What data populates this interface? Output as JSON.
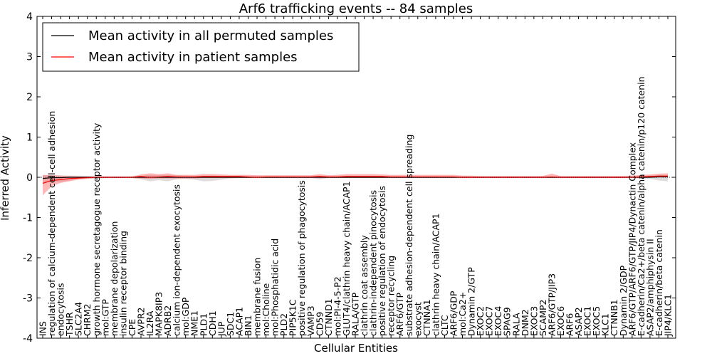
{
  "chart_data": {
    "type": "line",
    "title": "Arf6 trafficking events -- 84 samples",
    "xlabel": "Cellular Entities",
    "ylabel": "Inferred Activity",
    "ylim": [
      -4,
      4
    ],
    "yticks": [
      -4,
      -3,
      -2,
      -1,
      0,
      1,
      2,
      3,
      4
    ],
    "grid": false,
    "legend": {
      "placement": "top-left",
      "entries": [
        {
          "label": "Mean activity in all permuted samples",
          "color": "#000000"
        },
        {
          "label": "Mean activity in patient samples",
          "color": "#ff0000"
        }
      ]
    },
    "categories": [
      "INS",
      "regulation of calcium-dependent cell-cell adhesion",
      "endocytosis",
      "TSHR",
      "SLC2A4",
      "CHRM2",
      "growth hormone secretagogue receptor activity",
      "mol:GTP",
      "membrane depolarization",
      "insulin receptor binding",
      "CPE",
      "AVPR2",
      "IL2RA",
      "MAPK8IP3",
      "ADRB2",
      "calcium ion-dependent exocytosis",
      "mol:GDP",
      "NME1",
      "PLD1",
      "CDH1",
      "JUP",
      "SDC1",
      "ACAP1",
      "BIN1",
      "membrane fusion",
      "mol:Choline",
      "mol:Phosphatidic acid",
      "PLD2",
      "PIP5K1C",
      "positive regulation of phagocytosis",
      "VAMP3",
      "CD59",
      "CTNND1",
      "mol:PI-4-5-P2",
      "GLUT4/clathrin heavy chain/ACAP1",
      "RALA/GTP",
      "clathrin coat assembly",
      "clathrin-independent pinocytosis",
      "positive regulation of endocytosis",
      "receptor recycling",
      "ARF6/GTP",
      "substrate adhesion-dependent cell spreading",
      "exocyst",
      "CTNNA1",
      "clathrin heavy chain/ACAP1",
      "CLTC",
      "ARF6/GDP",
      "mol:Ca2+",
      "Dynamin 2/GTP",
      "EXOC2",
      "EXOC7",
      "EXOC4",
      "SPAG9",
      "RALA",
      "DNM2",
      "EXOC3",
      "SCAMP2",
      "ARF6/GTP/JIP3",
      "EXOC6",
      "ARF6",
      "ASAP2",
      "EXOC1",
      "EXOC5",
      "KLC1",
      "CTNNB1",
      "Dynamin 2/GDP",
      "ARF6/GTP/ARF6/GTP/JIP4/Dynactin Complex",
      "E-cadherin/Ca2+/beta catenin/alpha catenin/p120 catenin",
      "ASAP2/amphiphysin II",
      "E-cadherin/beta catenin",
      "JIP4/KLC1"
    ],
    "series": [
      {
        "name": "Mean activity in all permuted samples",
        "color": "#000000",
        "values": [
          -0.03,
          -0.01,
          -0.01,
          0,
          0,
          0,
          0,
          0,
          0,
          0,
          0,
          0,
          0,
          0,
          0,
          0,
          0,
          0,
          0,
          0,
          0,
          0,
          0,
          0,
          0,
          0,
          0,
          0,
          0,
          0,
          0,
          0,
          0,
          0,
          0,
          0,
          0,
          0,
          0,
          0,
          0,
          0,
          0,
          0,
          0,
          0,
          0,
          0,
          0,
          0,
          0,
          0,
          0,
          0,
          0,
          0,
          0,
          0,
          0,
          0,
          0,
          0,
          0,
          0,
          0,
          0,
          0,
          0,
          0,
          0.01,
          0.01
        ],
        "band_lower": [
          -0.16,
          -0.1,
          -0.12,
          -0.08,
          -0.04,
          -0.03,
          -0.03,
          -0.02,
          -0.02,
          -0.02,
          -0.02,
          -0.05,
          -0.1,
          -0.07,
          -0.1,
          -0.05,
          -0.04,
          -0.06,
          -0.1,
          -0.09,
          -0.06,
          -0.03,
          -0.02,
          -0.02,
          -0.02,
          -0.02,
          -0.02,
          -0.02,
          -0.02,
          -0.02,
          -0.02,
          -0.05,
          -0.02,
          -0.02,
          -0.02,
          -0.02,
          -0.02,
          -0.02,
          -0.02,
          -0.02,
          -0.02,
          -0.02,
          -0.02,
          -0.02,
          -0.02,
          -0.02,
          -0.02,
          -0.02,
          -0.02,
          -0.02,
          -0.02,
          -0.02,
          -0.02,
          -0.02,
          -0.02,
          -0.02,
          -0.02,
          -0.02,
          -0.02,
          -0.02,
          -0.02,
          -0.02,
          -0.02,
          -0.02,
          -0.02,
          -0.02,
          -0.02,
          -0.03,
          -0.04,
          -0.08,
          -0.1
        ],
        "band_upper": [
          0.05,
          0.06,
          0.05,
          0.04,
          0.04,
          0.03,
          0.02,
          0.02,
          0.02,
          0.02,
          0.02,
          0.04,
          0.06,
          0.05,
          0.06,
          0.05,
          0.04,
          0.03,
          0.04,
          0.04,
          0.03,
          0.02,
          0.02,
          0.02,
          0.02,
          0.02,
          0.02,
          0.02,
          0.02,
          0.02,
          0.02,
          0.03,
          0.02,
          0.02,
          0.02,
          0.02,
          0.02,
          0.02,
          0.02,
          0.02,
          0.02,
          0.02,
          0.02,
          0.02,
          0.02,
          0.02,
          0.02,
          0.02,
          0.02,
          0.02,
          0.02,
          0.02,
          0.02,
          0.02,
          0.02,
          0.02,
          0.02,
          0.02,
          0.02,
          0.02,
          0.02,
          0.02,
          0.02,
          0.02,
          0.02,
          0.02,
          0.02,
          0.03,
          0.04,
          0.06,
          0.06
        ]
      },
      {
        "name": "Mean activity in patient samples",
        "color": "#ff0000",
        "values": [
          -0.15,
          -0.08,
          -0.06,
          -0.03,
          -0.02,
          -0.01,
          0,
          0,
          0,
          0,
          0,
          0.02,
          0,
          0.01,
          0.02,
          0.01,
          0.01,
          0.01,
          0.02,
          0.02,
          0.02,
          0.02,
          0.02,
          0.01,
          0,
          0.01,
          0.01,
          0.01,
          0.01,
          0.01,
          0.01,
          0.02,
          0.01,
          0.01,
          0.02,
          0.02,
          0.02,
          0.02,
          0.02,
          0.01,
          0.01,
          0.01,
          0.01,
          0.01,
          0.01,
          0.01,
          0.01,
          0,
          0,
          0,
          0,
          0,
          0,
          0,
          0,
          0,
          0,
          0.01,
          0,
          0,
          0,
          0,
          0,
          0,
          0,
          0,
          0,
          0.01,
          0.02,
          0.03,
          0.03
        ],
        "band_lower": [
          -0.45,
          -0.22,
          -0.14,
          -0.1,
          -0.06,
          -0.04,
          -0.02,
          -0.02,
          -0.02,
          -0.02,
          -0.02,
          -0.03,
          -0.04,
          -0.03,
          -0.03,
          -0.03,
          -0.03,
          -0.03,
          -0.02,
          -0.02,
          -0.02,
          -0.02,
          -0.02,
          -0.02,
          -0.02,
          -0.02,
          -0.02,
          -0.02,
          -0.02,
          -0.02,
          -0.02,
          -0.02,
          -0.02,
          -0.02,
          -0.02,
          -0.02,
          -0.02,
          -0.02,
          -0.02,
          -0.02,
          -0.02,
          -0.02,
          -0.02,
          -0.02,
          -0.02,
          -0.02,
          -0.02,
          -0.02,
          -0.02,
          -0.02,
          -0.02,
          -0.02,
          -0.02,
          -0.02,
          -0.02,
          -0.02,
          -0.02,
          -0.02,
          -0.02,
          -0.02,
          -0.02,
          -0.02,
          -0.02,
          -0.02,
          -0.02,
          -0.02,
          -0.02,
          -0.02,
          -0.01,
          0,
          0
        ],
        "band_upper": [
          0.06,
          0.05,
          0.04,
          0.03,
          0.02,
          0.02,
          0.02,
          0.02,
          0.02,
          0.02,
          0.02,
          0.07,
          0.1,
          0.08,
          0.1,
          0.06,
          0.06,
          0.06,
          0.08,
          0.08,
          0.07,
          0.06,
          0.06,
          0.06,
          0.05,
          0.05,
          0.05,
          0.05,
          0.05,
          0.05,
          0.05,
          0.08,
          0.05,
          0.06,
          0.08,
          0.08,
          0.08,
          0.08,
          0.07,
          0.06,
          0.06,
          0.06,
          0.06,
          0.06,
          0.06,
          0.06,
          0.06,
          0.04,
          0.04,
          0.03,
          0.03,
          0.03,
          0.03,
          0.03,
          0.03,
          0.03,
          0.03,
          0.09,
          0.03,
          0.03,
          0.03,
          0.03,
          0.03,
          0.03,
          0.03,
          0.03,
          0.04,
          0.06,
          0.07,
          0.09,
          0.1
        ]
      }
    ]
  }
}
